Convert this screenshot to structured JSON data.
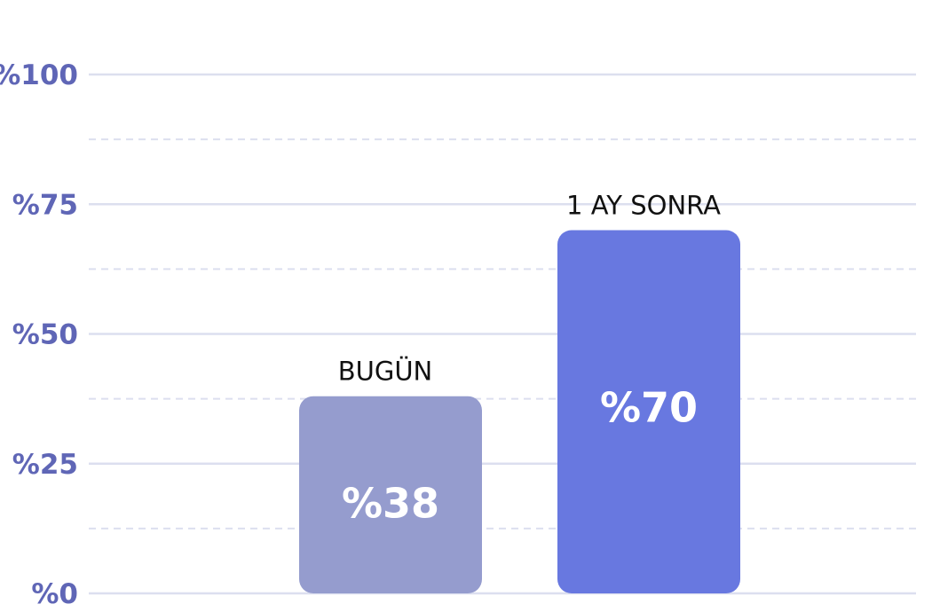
{
  "chart_data": {
    "type": "bar",
    "title": "",
    "xlabel": "",
    "ylabel": "",
    "ylim": [
      0,
      100
    ],
    "ytick_values": [
      0,
      25,
      50,
      75,
      100
    ],
    "ytick_labels": [
      "%0",
      "%25",
      "%50",
      "%75",
      "%100"
    ],
    "minor_gridlines": true,
    "grid": true,
    "categories": [
      "BUGÜN",
      "1 AY SONRA"
    ],
    "values": [
      38,
      70
    ],
    "value_labels": [
      "%38",
      "%70"
    ],
    "bar_colors": [
      "#959cce",
      "#6878e0"
    ],
    "tick_color": "#5f66b6",
    "grid_color": "#dcdfef"
  }
}
